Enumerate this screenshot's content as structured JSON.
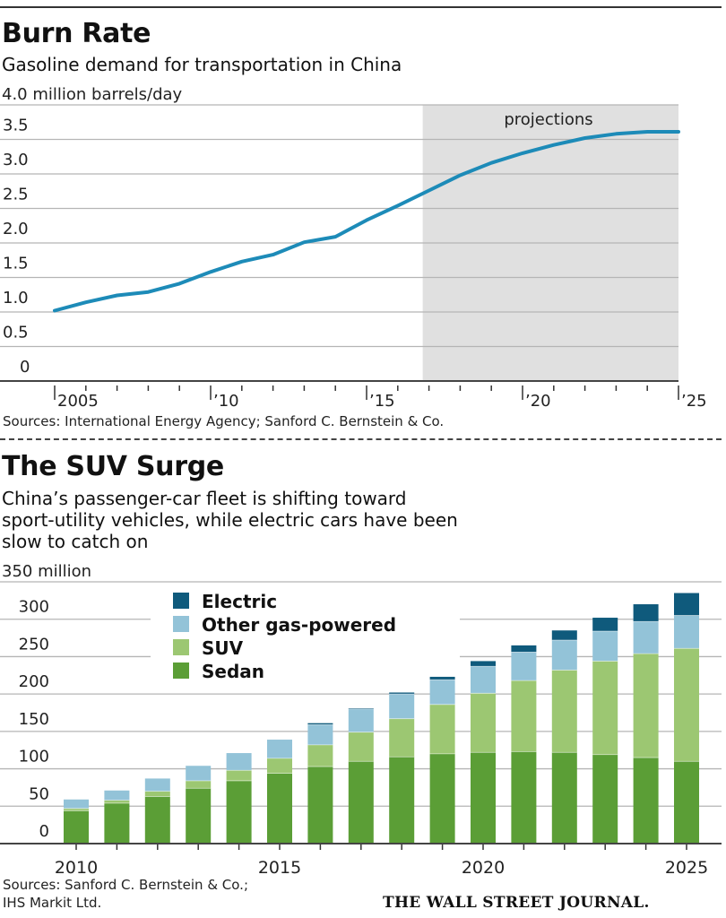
{
  "chart1": {
    "title": "Burn Rate",
    "subtitle": "Gasoline demand for transportation in China",
    "unit_label": "4.0 million barrels/day",
    "sources": "Sources: International Energy Agency; Sanford C. Bernstein & Co."
  },
  "chart2": {
    "title": "The SUV Surge",
    "subtitle_lines": [
      "China’s passenger-car fleet is shifting toward",
      "sport-utility vehicles, while electric cars have been",
      "slow to catch on"
    ],
    "unit_label": "350 million",
    "sources_lines": [
      "Sources: Sanford C. Bernstein & Co.;",
      "IHS Markit Ltd."
    ]
  },
  "credit": "THE WALL STREET JOURNAL.",
  "chart_data": [
    {
      "type": "line",
      "title": "Burn Rate",
      "ylabel": "million barrels/day",
      "ylim": [
        0,
        4.0
      ],
      "xlim": [
        2005,
        2025
      ],
      "yticks": [
        {
          "value": 0,
          "label": "0"
        },
        {
          "value": 0.5,
          "label": "0.5"
        },
        {
          "value": 1.0,
          "label": "1.0"
        },
        {
          "value": 1.5,
          "label": "1.5"
        },
        {
          "value": 2.0,
          "label": "2.0"
        },
        {
          "value": 2.5,
          "label": "2.5"
        },
        {
          "value": 3.0,
          "label": "3.0"
        },
        {
          "value": 3.5,
          "label": "3.5"
        }
      ],
      "xticks": [
        {
          "value": 2005,
          "label": "2005"
        },
        {
          "value": 2010,
          "label": "’10"
        },
        {
          "value": 2015,
          "label": "’15"
        },
        {
          "value": 2020,
          "label": "’20"
        },
        {
          "value": 2025,
          "label": "’25"
        }
      ],
      "grid": true,
      "projection": {
        "label": "projections",
        "from": 2016.8,
        "to": 2025,
        "color": "#e0e0e0"
      },
      "color": "#1d8bb8",
      "x": [
        2005,
        2006,
        2007,
        2008,
        2009,
        2010,
        2011,
        2012,
        2013,
        2014,
        2015,
        2016,
        2017,
        2018,
        2019,
        2020,
        2021,
        2022,
        2023,
        2024,
        2025
      ],
      "y": [
        1.02,
        1.14,
        1.24,
        1.29,
        1.41,
        1.58,
        1.73,
        1.83,
        2.01,
        2.09,
        2.33,
        2.54,
        2.76,
        2.98,
        3.16,
        3.3,
        3.42,
        3.52,
        3.58,
        3.61,
        3.61
      ]
    },
    {
      "type": "bar",
      "stacked": true,
      "title": "The SUV Surge",
      "ylabel": "million",
      "ylim": [
        0,
        350
      ],
      "yticks": [
        {
          "value": 0,
          "label": "0"
        },
        {
          "value": 50,
          "label": "50"
        },
        {
          "value": 100,
          "label": "100"
        },
        {
          "value": 150,
          "label": "150"
        },
        {
          "value": 200,
          "label": "200"
        },
        {
          "value": 250,
          "label": "250"
        },
        {
          "value": 300,
          "label": "300"
        }
      ],
      "xtick_labels": [
        "2010",
        "2015",
        "2020",
        "2025"
      ],
      "grid": true,
      "legend": "top-left",
      "categories": [
        2010,
        2011,
        2012,
        2013,
        2014,
        2015,
        2016,
        2017,
        2018,
        2019,
        2020,
        2021,
        2022,
        2023,
        2024,
        2025
      ],
      "series": [
        {
          "name": "Sedan",
          "color": "#5b9e36",
          "values": [
            44,
            54,
            63,
            74,
            84,
            94,
            103,
            110,
            116,
            120,
            122,
            123,
            122,
            119,
            115,
            110
          ]
        },
        {
          "name": "SUV",
          "color": "#9cc772",
          "values": [
            3,
            4,
            7,
            10,
            14,
            20,
            29,
            39,
            51,
            66,
            79,
            95,
            110,
            125,
            139,
            151
          ]
        },
        {
          "name": "Other gas-powered",
          "color": "#93c3d8",
          "values": [
            12,
            13,
            17,
            20,
            23,
            25,
            27,
            31,
            33,
            33,
            36,
            38,
            40,
            40,
            43,
            44
          ]
        },
        {
          "name": "Electric",
          "color": "#0f5a7c",
          "values": [
            0,
            0,
            0,
            0,
            0,
            0,
            2,
            1,
            2,
            4,
            7,
            9,
            13,
            18,
            23,
            30
          ]
        }
      ]
    }
  ]
}
